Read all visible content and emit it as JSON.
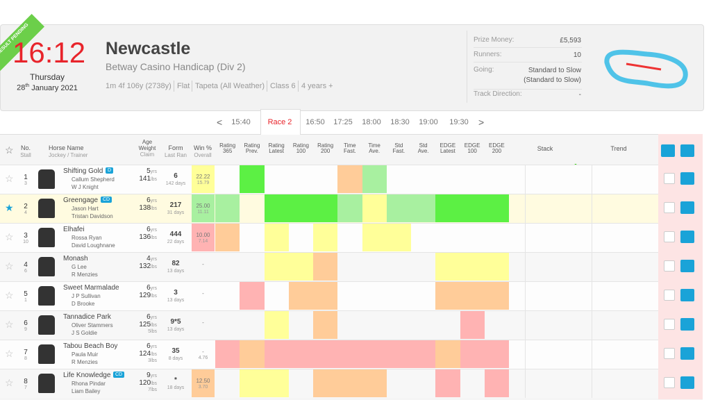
{
  "header": {
    "status": "RESULT PENDING",
    "time": "16:12",
    "day": "Thursday",
    "date_day": "28",
    "date_suffix": "th",
    "date_rest": "January 2021",
    "course": "Newcastle",
    "race_name": "Betway Casino Handicap (Div 2)",
    "details": [
      "1m 4f 106y (2738y)",
      "Flat",
      "Tapeta (All Weather)",
      "Class 6",
      "4 years +"
    ],
    "info": [
      {
        "label": "Prize Money:",
        "value": "£5,593"
      },
      {
        "label": "Runners:",
        "value": "10"
      },
      {
        "label": "Going:",
        "value": "Standard to Slow\n(Standard to Slow)"
      },
      {
        "label": "Track Direction:",
        "value": "-"
      }
    ]
  },
  "race_nav": {
    "prev": "<",
    "next": ">",
    "races": [
      "15:40",
      "Race 2",
      "16:50",
      "17:25",
      "18:00",
      "18:30",
      "19:00",
      "19:30"
    ],
    "active": 1
  },
  "table": {
    "columns": {
      "no": "No.",
      "stall": "Stall",
      "horse": "Horse Name",
      "jockey_trainer": "Jockey / Trainer",
      "age": "Age",
      "weight": "Weight",
      "claim": "Claim",
      "form": "Form",
      "last_ran": "Last Ran",
      "win": "Win %",
      "overall": "Overall",
      "ratings": [
        [
          "Rating",
          "365"
        ],
        [
          "Rating",
          "Prev."
        ],
        [
          "Rating",
          "Latest"
        ],
        [
          "Rating",
          "100"
        ],
        [
          "Rating",
          "200"
        ],
        [
          "Time",
          "Fast."
        ],
        [
          "Time",
          "Ave."
        ],
        [
          "Std",
          "Fast."
        ],
        [
          "Std",
          "Ave."
        ],
        [
          "EDGE",
          "Latest"
        ],
        [
          "EDGE",
          "100"
        ],
        [
          "EDGE",
          "200"
        ]
      ],
      "stack": "Stack",
      "trend": "Trend"
    },
    "age_unit": "yrs",
    "weight_unit": "lbs",
    "rows": [
      {
        "no": "1",
        "stall": "3",
        "horse": "Shifting Gold",
        "badge": "D",
        "jockey": "Callum Shepherd",
        "trainer": "W J Knight",
        "age": "5",
        "weight": "141",
        "claim": null,
        "form": "6",
        "last_ran": "142 days",
        "win": "22.22",
        "overall": "15.79",
        "win_color": "#ffff99",
        "cells": [
          "",
          "#5cf044",
          "",
          "",
          "",
          "#ffcc99",
          "#a8f0a0",
          "",
          "",
          "",
          "",
          ""
        ]
      },
      {
        "no": "2",
        "stall": "4",
        "horse": "Greengage",
        "badge": "CD",
        "jockey": "Jason Hart",
        "trainer": "Tristan Davidson",
        "age": "6",
        "weight": "138",
        "claim": null,
        "form": "217",
        "last_ran": "31 days",
        "win": "25.00",
        "overall": "11.11",
        "win_color": "#a8f0a0",
        "cells": [
          "#a8f0a0",
          "",
          "#5cf044",
          "#5cf044",
          "#5cf044",
          "#a8f0a0",
          "#ffff99",
          "#a8f0a0",
          "#a8f0a0",
          "#5cf044",
          "#5cf044",
          "#5cf044"
        ]
      },
      {
        "no": "3",
        "stall": "10",
        "horse": "Elhafei",
        "badge": null,
        "jockey": "Rossa Ryan",
        "trainer": "David Loughnane",
        "age": "6",
        "weight": "136",
        "claim": null,
        "form": "444",
        "last_ran": "22 days",
        "win": "10.00",
        "overall": "7.14",
        "win_color": "#ffb3b3",
        "cells": [
          "#ffcc99",
          "",
          "#ffff99",
          "",
          "#ffff99",
          "",
          "#ffff99",
          "#ffff99",
          "",
          "",
          "",
          ""
        ]
      },
      {
        "no": "4",
        "stall": "6",
        "horse": "Monash",
        "badge": null,
        "jockey": "G Lee",
        "trainer": "R Menzies",
        "age": "4",
        "weight": "132",
        "claim": null,
        "form": "82",
        "last_ran": "13 days",
        "win": "-",
        "overall": null,
        "win_color": "",
        "cells": [
          "",
          "",
          "#ffff99",
          "#ffff99",
          "#ffcc99",
          "",
          "",
          "",
          "",
          "#ffff99",
          "#ffff99",
          "#ffff99"
        ]
      },
      {
        "no": "5",
        "stall": "1",
        "horse": "Sweet Marmalade",
        "badge": null,
        "jockey": "J P Sullivan",
        "trainer": "D Brooke",
        "age": "6",
        "weight": "129",
        "claim": null,
        "form": "3",
        "last_ran": "13 days",
        "win": "-",
        "overall": null,
        "win_color": "",
        "cells": [
          "",
          "#ffb3b3",
          "",
          "#ffcc99",
          "#ffcc99",
          "",
          "",
          "",
          "",
          "#ffcc99",
          "#ffcc99",
          "#ffcc99"
        ]
      },
      {
        "no": "6",
        "stall": "9",
        "horse": "Tannadice Park",
        "badge": null,
        "jockey": "Oliver Stammers",
        "trainer": "J S Goldie",
        "age": "6",
        "weight": "125",
        "claim": "5lbs",
        "form": "9*5",
        "last_ran": "13 days",
        "win": "-",
        "overall": null,
        "win_color": "",
        "cells": [
          "",
          "",
          "#ffff99",
          "",
          "#ffcc99",
          "",
          "",
          "",
          "",
          "",
          "#ffb3b3",
          ""
        ]
      },
      {
        "no": "7",
        "stall": "8",
        "horse": "Tabou Beach Boy",
        "badge": null,
        "jockey": "Paula Muir",
        "trainer": "R Menzies",
        "age": "6",
        "weight": "124",
        "claim": "3lbs",
        "form": "35",
        "last_ran": "8 days",
        "win": "-",
        "overall": "4.76",
        "win_color": "",
        "cells": [
          "#ffb3b3",
          "#ffcc99",
          "#ffb3b3",
          "#ffb3b3",
          "#ffb3b3",
          "#ffb3b3",
          "#ffb3b3",
          "#ffb3b3",
          "#ffb3b3",
          "#ffcc99",
          "#ffb3b3",
          "#ffb3b3"
        ]
      },
      {
        "no": "8",
        "stall": "7",
        "horse": "Life Knowledge",
        "badge": "CD",
        "jockey": "Rhona Pindar",
        "trainer": "Liam Bailey",
        "age": "9",
        "weight": "120",
        "claim": "7lbs",
        "form": "*",
        "last_ran": "18 days",
        "win": "12.50",
        "overall": "3.70",
        "win_color": "#ffcc99",
        "cells": [
          "",
          "#ffff99",
          "#ffff99",
          "",
          "#ffcc99",
          "#ffcc99",
          "#ffcc99",
          "",
          "",
          "#ffb3b3",
          "",
          "#ffb3b3"
        ]
      }
    ]
  }
}
